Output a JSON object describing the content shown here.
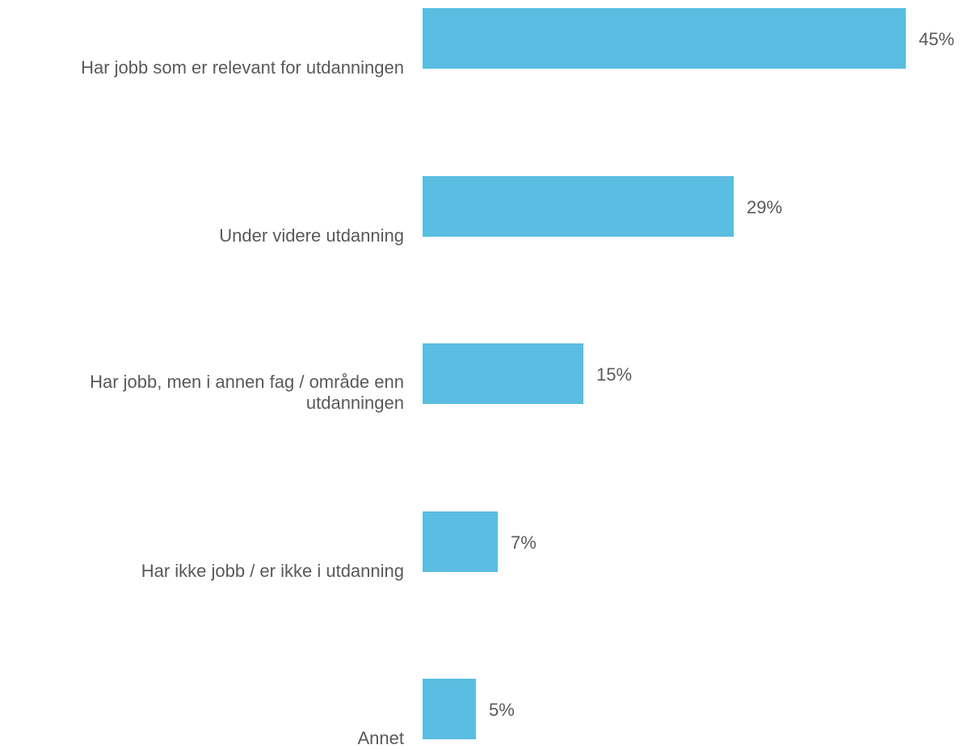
{
  "chart_data": {
    "type": "bar",
    "orientation": "horizontal",
    "categories": [
      "Har jobb som er relevant for utdanningen",
      "Under videre utdanning",
      "Har jobb, men i annen fag / område enn utdanningen",
      "Har ikke jobb / er ikke i utdanning",
      "Annet"
    ],
    "values": [
      45,
      29,
      15,
      7,
      5
    ],
    "value_labels": [
      "45%",
      "29%",
      "15%",
      "7%",
      "5%"
    ],
    "title": "",
    "xlabel": "",
    "ylabel": "",
    "xlim": [
      0,
      45
    ],
    "grid": false,
    "legend": "none",
    "bar_color": "#5bbde1",
    "label_color": "#595959"
  }
}
